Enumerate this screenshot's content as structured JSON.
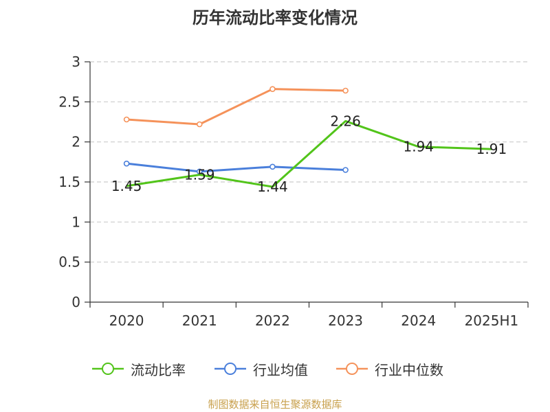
{
  "chart_data": {
    "type": "line",
    "title": "历年流动比率变化情况",
    "categories": [
      "2020",
      "2021",
      "2022",
      "2023",
      "2024",
      "2025H1"
    ],
    "ylim": [
      0,
      3
    ],
    "yticks": [
      "0",
      "0.5",
      "1",
      "1.5",
      "2",
      "2.5",
      "3"
    ],
    "grid": true,
    "legend_position": "bottom",
    "series": [
      {
        "name": "流动比率",
        "color": "#52c41a",
        "values": [
          1.45,
          1.59,
          1.44,
          2.26,
          1.94,
          1.91
        ],
        "labels": [
          "1.45",
          "1.59",
          "1.44",
          "2.26",
          "1.94",
          "1.91"
        ]
      },
      {
        "name": "行业均值",
        "color": "#4a7fdb",
        "values": [
          1.73,
          1.63,
          1.69,
          1.65,
          null,
          null
        ]
      },
      {
        "name": "行业中位数",
        "color": "#f5925a",
        "values": [
          2.28,
          2.22,
          2.66,
          2.64,
          null,
          null
        ]
      }
    ]
  },
  "source": "制图数据来自恒生聚源数据库"
}
